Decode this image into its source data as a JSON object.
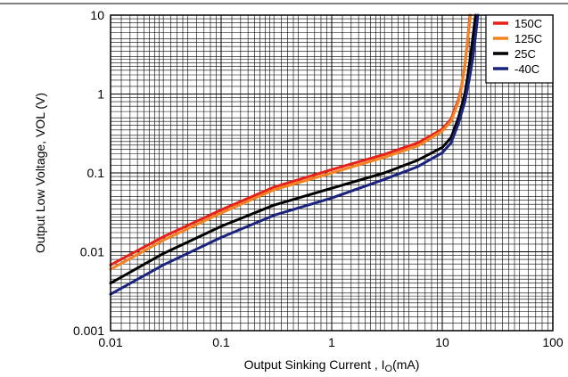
{
  "chart_data": {
    "type": "line",
    "title": "",
    "xlabel": "Output Sinking Current , I",
    "xlabel_sub": "O",
    "xlabel_suffix": "(mA)",
    "ylabel": "Output Low Voltage, VOL (V)",
    "xscale": "log",
    "yscale": "log",
    "xlim": [
      0.01,
      100
    ],
    "ylim": [
      0.001,
      10
    ],
    "xticks": [
      "0.01",
      "0.1",
      "1",
      "10",
      "100"
    ],
    "yticks": [
      "0.001",
      "0.01",
      "0.1",
      "1",
      "10"
    ],
    "grid": true,
    "legend_position": "top-right",
    "series": [
      {
        "name": "150C",
        "color": "#e8201a",
        "points": [
          [
            0.01,
            0.0068
          ],
          [
            0.03,
            0.0155
          ],
          [
            0.1,
            0.034
          ],
          [
            0.3,
            0.066
          ],
          [
            1,
            0.11
          ],
          [
            3,
            0.172
          ],
          [
            6,
            0.24
          ],
          [
            8,
            0.3
          ],
          [
            10,
            0.36
          ],
          [
            12,
            0.48
          ],
          [
            14,
            0.85
          ],
          [
            15,
            1.3
          ],
          [
            16,
            2.3
          ],
          [
            17,
            5.0
          ],
          [
            17.8,
            10
          ]
        ]
      },
      {
        "name": "125C",
        "color": "#f58220",
        "points": [
          [
            0.01,
            0.006
          ],
          [
            0.03,
            0.014
          ],
          [
            0.1,
            0.031
          ],
          [
            0.3,
            0.061
          ],
          [
            1,
            0.1
          ],
          [
            3,
            0.158
          ],
          [
            6,
            0.22
          ],
          [
            8,
            0.28
          ],
          [
            10,
            0.34
          ],
          [
            12,
            0.45
          ],
          [
            14,
            0.8
          ],
          [
            15,
            1.25
          ],
          [
            16,
            2.3
          ],
          [
            17,
            5.0
          ],
          [
            18,
            10
          ]
        ]
      },
      {
        "name": "25C",
        "color": "#000000",
        "points": [
          [
            0.01,
            0.004
          ],
          [
            0.03,
            0.0095
          ],
          [
            0.1,
            0.021
          ],
          [
            0.3,
            0.039
          ],
          [
            1,
            0.064
          ],
          [
            3,
            0.1
          ],
          [
            6,
            0.145
          ],
          [
            10,
            0.21
          ],
          [
            12,
            0.28
          ],
          [
            14,
            0.5
          ],
          [
            16,
            1.0
          ],
          [
            17,
            1.7
          ],
          [
            18,
            3.0
          ],
          [
            19,
            5.5
          ],
          [
            20,
            10
          ]
        ]
      },
      {
        "name": "-40C",
        "color": "#1a237e",
        "points": [
          [
            0.01,
            0.0029
          ],
          [
            0.03,
            0.0068
          ],
          [
            0.1,
            0.0152
          ],
          [
            0.3,
            0.029
          ],
          [
            1,
            0.048
          ],
          [
            3,
            0.083
          ],
          [
            6,
            0.12
          ],
          [
            10,
            0.18
          ],
          [
            12,
            0.24
          ],
          [
            14,
            0.42
          ],
          [
            16,
            0.8
          ],
          [
            17.5,
            1.5
          ],
          [
            19,
            3.0
          ],
          [
            20,
            5.5
          ],
          [
            21,
            10
          ]
        ]
      }
    ]
  }
}
